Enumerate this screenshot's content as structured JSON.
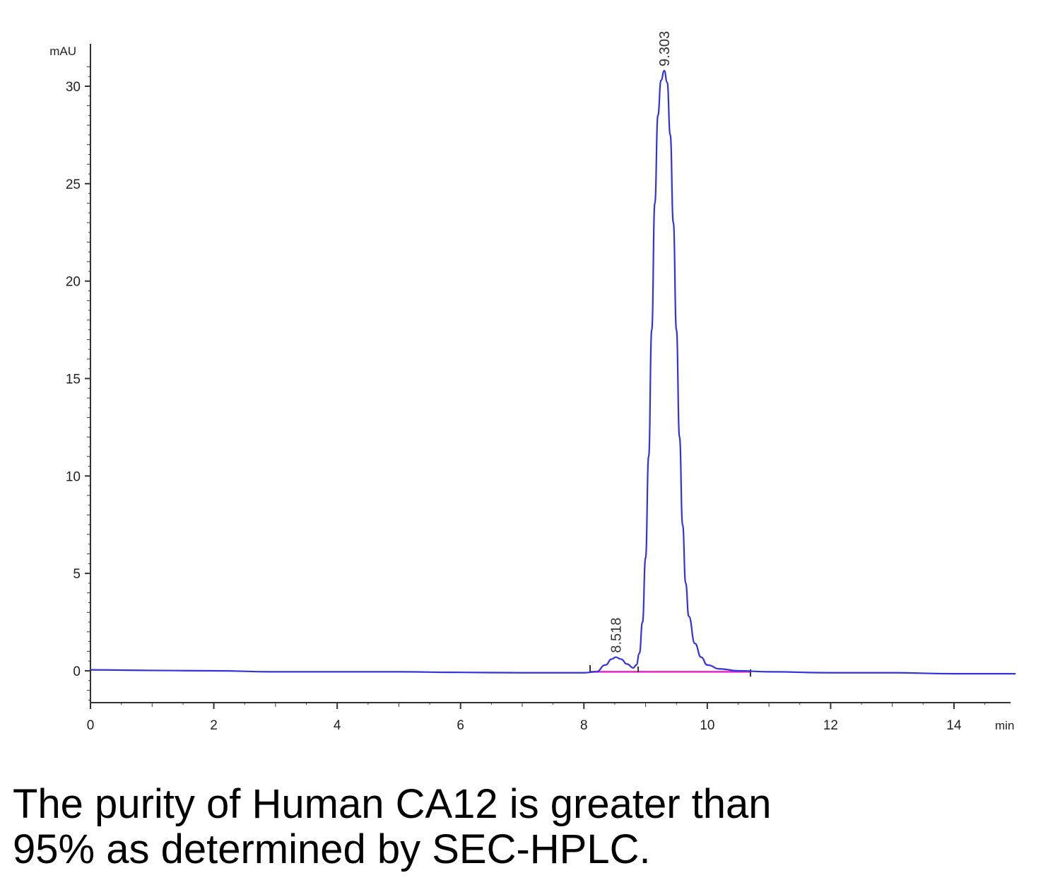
{
  "chart_data": {
    "type": "line",
    "title": "",
    "ylabel": "mAU",
    "xlabel": "min",
    "xlim": [
      0,
      15
    ],
    "ylim": [
      -1.7,
      31
    ],
    "x_ticks": [
      0,
      2,
      4,
      6,
      8,
      10,
      12,
      14
    ],
    "x_tick_labels": [
      "0",
      "2",
      "4",
      "6",
      "8",
      "10",
      "12",
      "14"
    ],
    "y_ticks": [
      0,
      5,
      10,
      15,
      20,
      25,
      30
    ],
    "y_tick_labels": [
      "0",
      "5",
      "10",
      "15",
      "20",
      "25",
      "30"
    ],
    "grid": false,
    "series": [
      {
        "color": "#3333dd",
        "x": [
          0,
          1,
          2,
          3,
          4,
          5,
          6,
          7,
          7.5,
          8.0,
          8.2,
          8.35,
          8.45,
          8.518,
          8.6,
          8.7,
          8.8,
          8.85,
          8.9,
          8.95,
          9.0,
          9.05,
          9.1,
          9.15,
          9.2,
          9.25,
          9.303,
          9.35,
          9.4,
          9.45,
          9.5,
          9.55,
          9.6,
          9.65,
          9.7,
          9.8,
          9.9,
          10.0,
          10.2,
          10.5,
          11,
          12,
          13,
          14,
          15
        ],
        "y": [
          0.05,
          0.02,
          0.0,
          -0.05,
          -0.05,
          -0.05,
          -0.08,
          -0.1,
          -0.1,
          -0.1,
          -0.05,
          0.3,
          0.6,
          0.7,
          0.6,
          0.35,
          0.15,
          0.3,
          0.9,
          2.5,
          5.8,
          11.0,
          17.5,
          24.0,
          28.5,
          30.3,
          30.8,
          30.2,
          27.5,
          23.0,
          17.5,
          12.0,
          7.5,
          4.5,
          2.8,
          1.4,
          0.7,
          0.3,
          0.1,
          0.0,
          -0.05,
          -0.1,
          -0.1,
          -0.15,
          -0.15
        ]
      }
    ],
    "baseline": {
      "color": "#ee22cc",
      "x": [
        8.1,
        10.7
      ],
      "y": [
        -0.05,
        -0.05
      ]
    },
    "annotations": [
      {
        "text": "8.518",
        "x": 8.518,
        "y": 0.7
      },
      {
        "text": "9.303",
        "x": 9.303,
        "y": 30.8
      }
    ]
  },
  "caption": {
    "line1": "The purity of Human CA12 is greater than",
    "line2": "95% as determined by SEC-HPLC."
  }
}
